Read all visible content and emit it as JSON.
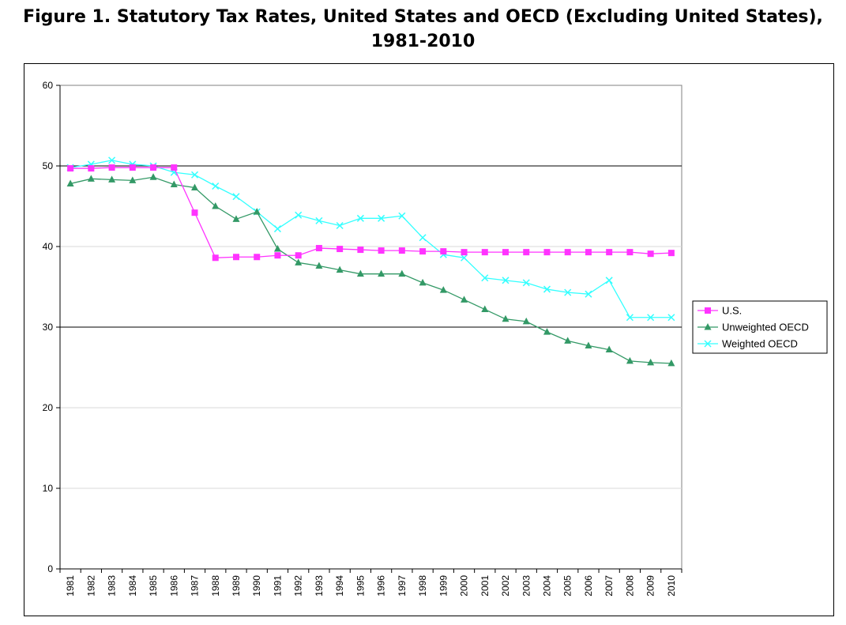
{
  "figure": {
    "title_line1": "Figure 1. Statutory Tax Rates, United States and OECD (Excluding United States),",
    "title_line2": "1981-2010"
  },
  "chart_data": {
    "type": "line",
    "title": "Figure 1. Statutory Tax Rates, United States and OECD (Excluding United States), 1981-2010",
    "xlabel": "",
    "ylabel": "",
    "ylim": [
      0,
      60
    ],
    "yticks": [
      0,
      10,
      20,
      30,
      40,
      50,
      60
    ],
    "grid": "horizontal at 30 and 50",
    "legend_position": "right",
    "categories": [
      "1981",
      "1982",
      "1983",
      "1984",
      "1985",
      "1986",
      "1987",
      "1988",
      "1989",
      "1990",
      "1991",
      "1992",
      "1993",
      "1994",
      "1995",
      "1996",
      "1997",
      "1998",
      "1999",
      "2000",
      "2001",
      "2002",
      "2003",
      "2004",
      "2005",
      "2006",
      "2007",
      "2008",
      "2009",
      "2010"
    ],
    "series": [
      {
        "name": "U.S.",
        "color": "#ff33ff",
        "marker": "square",
        "values": [
          49.7,
          49.7,
          49.8,
          49.8,
          49.8,
          49.8,
          44.2,
          38.6,
          38.7,
          38.7,
          38.9,
          38.9,
          39.8,
          39.7,
          39.6,
          39.5,
          39.5,
          39.4,
          39.4,
          39.3,
          39.3,
          39.3,
          39.3,
          39.3,
          39.3,
          39.3,
          39.3,
          39.3,
          39.1,
          39.2
        ]
      },
      {
        "name": "Unweighted OECD",
        "color": "#339966",
        "marker": "triangle",
        "values": [
          47.8,
          48.4,
          48.3,
          48.2,
          48.6,
          47.7,
          47.3,
          45.0,
          43.4,
          44.3,
          39.7,
          38.0,
          37.6,
          37.1,
          36.6,
          36.6,
          36.6,
          35.5,
          34.6,
          33.4,
          32.2,
          31.0,
          30.7,
          29.4,
          28.3,
          27.7,
          27.2,
          25.8,
          25.6,
          25.5
        ]
      },
      {
        "name": "Weighted OECD",
        "color": "#33ffff",
        "marker": "x",
        "values": [
          49.8,
          50.2,
          50.7,
          50.2,
          50.0,
          49.2,
          48.9,
          47.5,
          46.2,
          44.3,
          42.2,
          43.9,
          43.2,
          42.6,
          43.5,
          43.5,
          43.8,
          41.1,
          39.0,
          38.6,
          36.1,
          35.8,
          35.5,
          34.7,
          34.3,
          34.1,
          35.8,
          31.2,
          31.2,
          31.2
        ]
      }
    ]
  }
}
